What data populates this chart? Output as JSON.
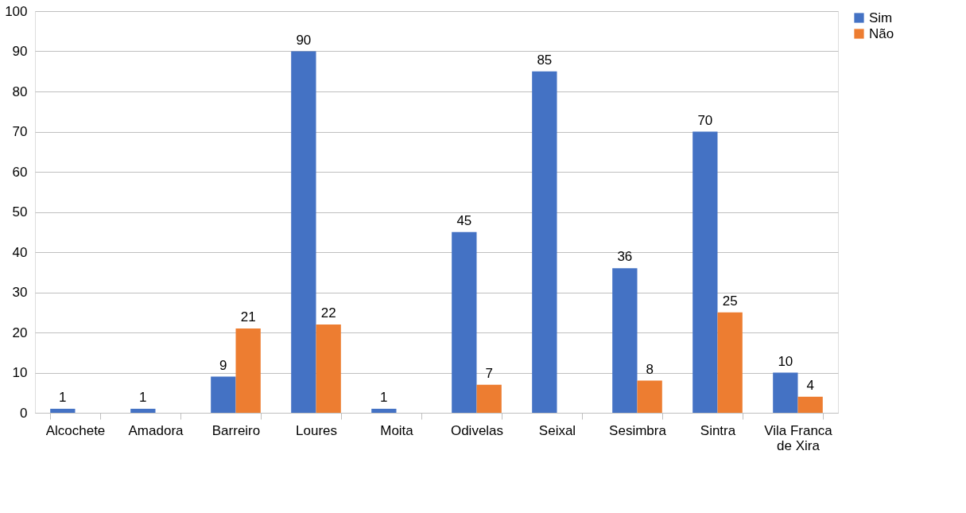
{
  "chart_data": {
    "type": "bar",
    "categories": [
      "Alcochete",
      "Amadora",
      "Barreiro",
      "Loures",
      "Moita",
      "Odivelas",
      "Seixal",
      "Sesimbra",
      "Sintra",
      "Vila Franca de Xira"
    ],
    "series": [
      {
        "name": "Sim",
        "color": "#4472c4",
        "values": [
          1,
          1,
          9,
          90,
          1,
          45,
          85,
          36,
          70,
          10
        ]
      },
      {
        "name": "Não",
        "color": "#ed7d31",
        "values": [
          null,
          null,
          21,
          22,
          null,
          7,
          null,
          8,
          25,
          4
        ]
      }
    ],
    "ylim": [
      0,
      100
    ],
    "yticks": [
      0,
      10,
      20,
      30,
      40,
      50,
      60,
      70,
      80,
      90,
      100
    ],
    "grid": "y",
    "legend": "right",
    "data_labels": true
  }
}
